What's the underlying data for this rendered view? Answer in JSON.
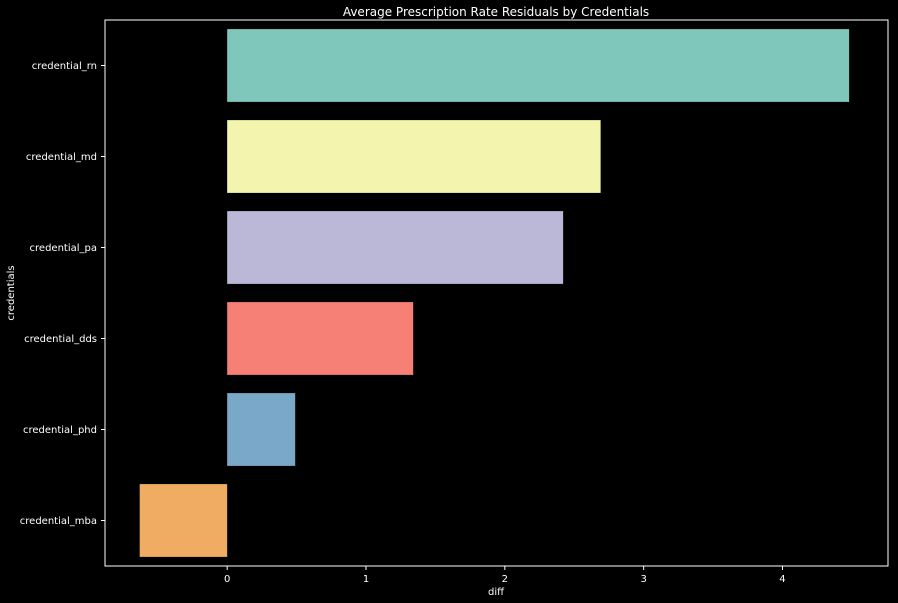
{
  "chart_data": {
    "type": "bar",
    "orientation": "horizontal",
    "title": "Average Prescription Rate Residuals by Credentials",
    "xlabel": "diff",
    "ylabel": "credentials",
    "categories": [
      "credential_rn",
      "credential_md",
      "credential_pa",
      "credential_dds",
      "credential_phd",
      "credential_mba"
    ],
    "values": [
      4.48,
      2.69,
      2.42,
      1.34,
      0.49,
      -0.63
    ],
    "colors": [
      "#80c7bb",
      "#f3f4ad",
      "#bbb7d6",
      "#f67f76",
      "#79a8c8",
      "#f1ac64"
    ],
    "xlim": [
      -0.88,
      4.76
    ],
    "xticks": [
      0,
      1,
      2,
      3,
      4
    ],
    "grid": false,
    "theme": "dark"
  }
}
